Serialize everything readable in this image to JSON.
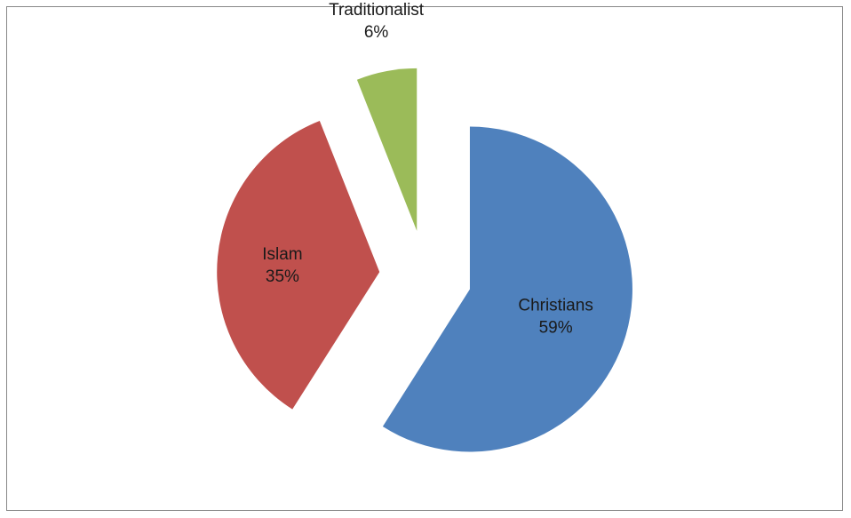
{
  "chart_data": {
    "type": "pie",
    "exploded": true,
    "legend": "none",
    "slices": [
      {
        "category": "Christians",
        "value": 59,
        "value_label": "59%",
        "color": "#4F81BD"
      },
      {
        "category": "Islam",
        "value": 35,
        "value_label": "35%",
        "color": "#C0504D"
      },
      {
        "category": "Traditionalist",
        "value": 6,
        "value_label": "6%",
        "color": "#9BBB59"
      }
    ]
  }
}
